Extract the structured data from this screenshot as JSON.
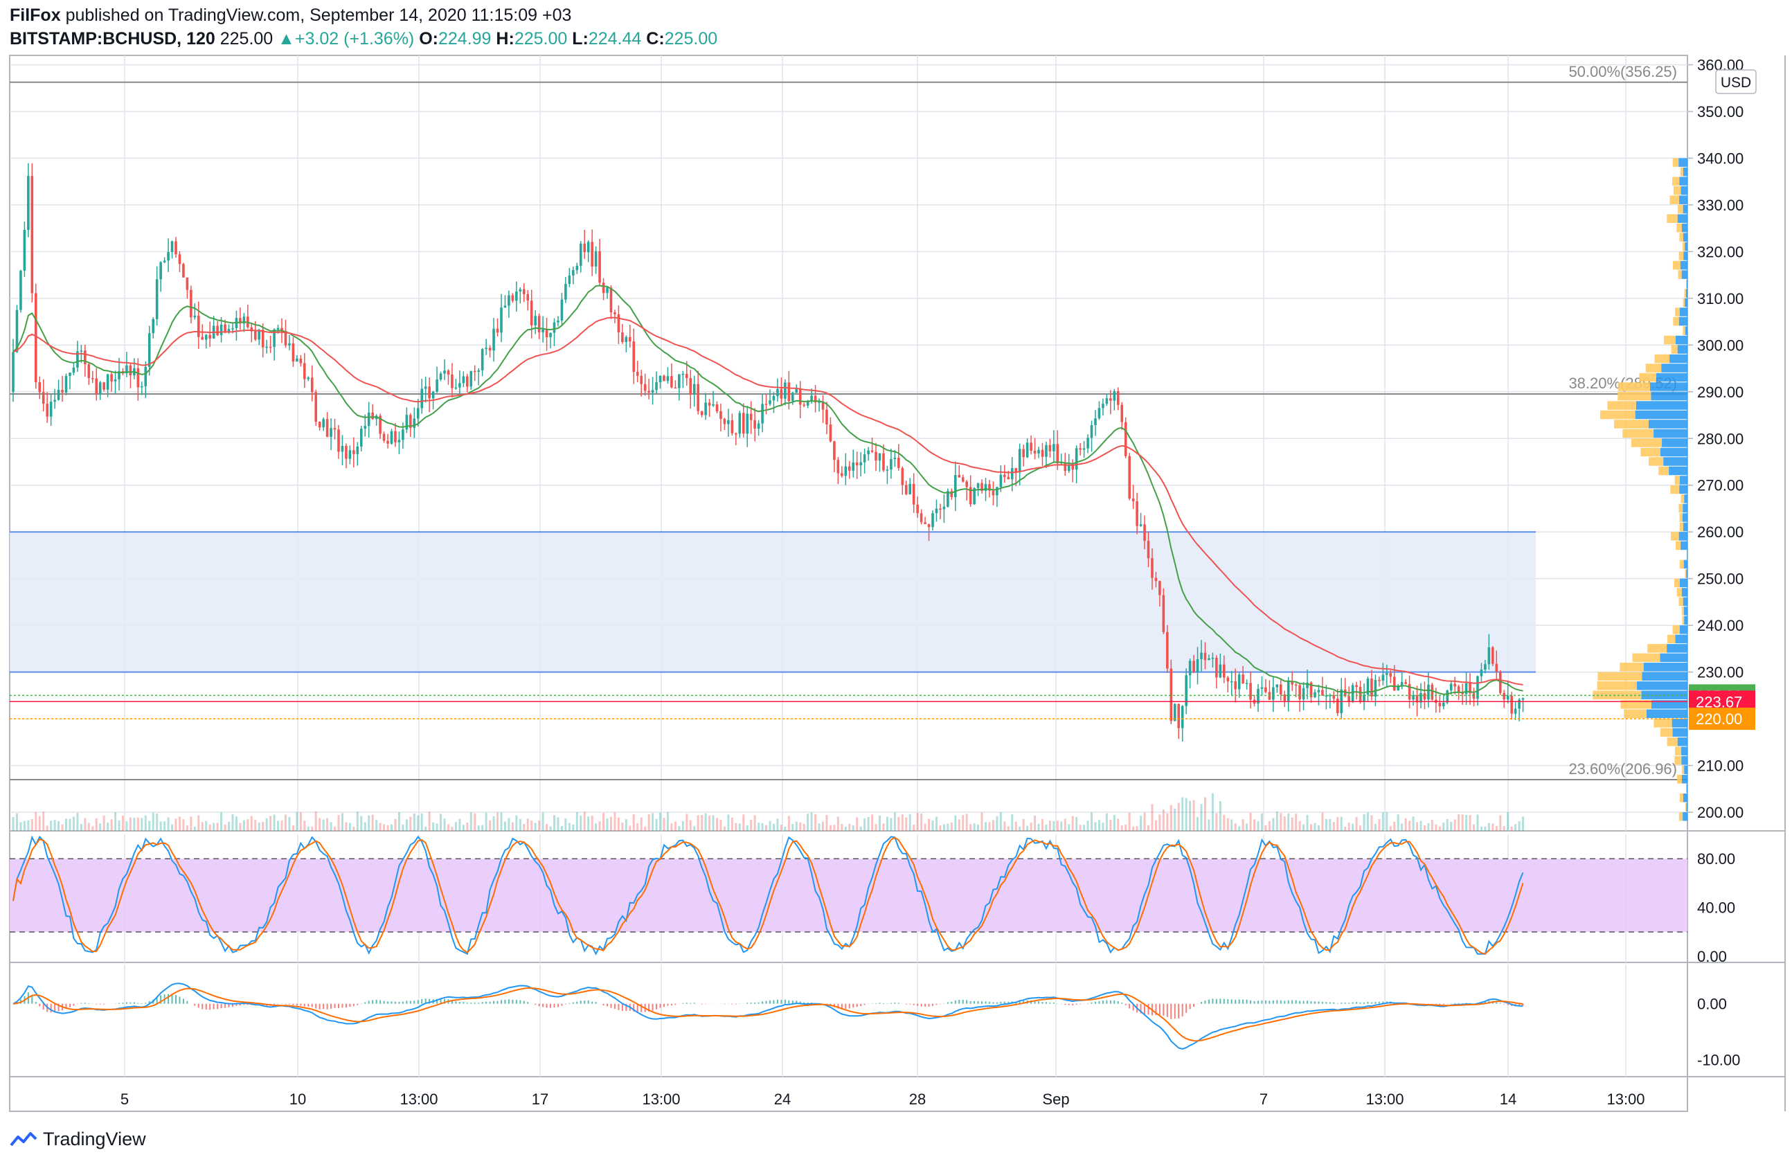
{
  "header": {
    "author": "FilFox",
    "published": "published on TradingView.com, September 14, 2020 11:15:09 +03",
    "symbol": "BITSTAMP:BCHUSD, 120",
    "last": "225.00",
    "change": "+3.02 (+1.36%)",
    "o_label": "O:",
    "o_value": "224.99",
    "h_label": "H:",
    "h_value": "225.00",
    "l_label": "L:",
    "l_value": "224.44",
    "c_label": "C:",
    "c_value": "225.00"
  },
  "footer": {
    "brand": "TradingView"
  },
  "colors": {
    "up": "#26a69a",
    "down": "#ef5350",
    "ma_fast": "#43a047",
    "ma_slow": "#ef5350",
    "zone": "#e3eaf8",
    "stoch_band": "#e8c9fb",
    "macd": "#2196f3",
    "signal": "#ff6d00",
    "price_up_tag": "#4caf50",
    "price_down_tag": "#ff1744",
    "price_orange_tag": "#ff9800"
  },
  "chart_data": {
    "type": "candlestick",
    "currency": "USD",
    "x_tick_labels": [
      "5",
      "10",
      "13:00",
      "17",
      "13:00",
      "24",
      "28",
      "Sep",
      "7",
      "13:00",
      "14",
      "13:00"
    ],
    "price_axis": {
      "ylim": [
        196,
        362
      ],
      "ticks": [
        "360.00",
        "350.00",
        "340.00",
        "330.00",
        "320.00",
        "310.00",
        "300.00",
        "290.00",
        "280.00",
        "270.00",
        "260.00",
        "250.00",
        "240.00",
        "230.00",
        "210.00",
        "200.00"
      ]
    },
    "fibonacci": [
      {
        "label": "50.00%(356.25)",
        "price": 356.25
      },
      {
        "label": "38.20%(289.52)",
        "price": 289.52
      },
      {
        "label": "23.60%(206.96)",
        "price": 206.96
      }
    ],
    "zone": {
      "top": 260,
      "bottom": 230
    },
    "price_tags": [
      {
        "label": "225.00",
        "price": 225.0,
        "kind": "last"
      },
      {
        "label": "223.67",
        "price": 223.67,
        "kind": "ma"
      },
      {
        "label": "220.00",
        "price": 220.0,
        "kind": "level"
      }
    ],
    "price_path": [
      [
        0,
        290
      ],
      [
        3,
        318
      ],
      [
        5,
        336
      ],
      [
        7,
        290
      ],
      [
        10,
        284
      ],
      [
        14,
        290
      ],
      [
        18,
        300
      ],
      [
        24,
        290
      ],
      [
        30,
        296
      ],
      [
        35,
        292
      ],
      [
        40,
        318
      ],
      [
        43,
        322
      ],
      [
        47,
        312
      ],
      [
        50,
        300
      ],
      [
        55,
        304
      ],
      [
        60,
        306
      ],
      [
        66,
        302
      ],
      [
        70,
        302
      ],
      [
        74,
        300
      ],
      [
        78,
        294
      ],
      [
        81,
        286
      ],
      [
        86,
        280
      ],
      [
        90,
        276
      ],
      [
        95,
        284
      ],
      [
        100,
        280
      ],
      [
        105,
        283
      ],
      [
        110,
        290
      ],
      [
        115,
        293
      ],
      [
        120,
        292
      ],
      [
        124,
        296
      ],
      [
        128,
        302
      ],
      [
        131,
        310
      ],
      [
        135,
        311
      ],
      [
        140,
        303
      ],
      [
        144,
        305
      ],
      [
        148,
        314
      ],
      [
        151,
        322
      ],
      [
        155,
        318
      ],
      [
        158,
        310
      ],
      [
        162,
        303
      ],
      [
        166,
        294
      ],
      [
        170,
        290
      ],
      [
        174,
        292
      ],
      [
        178,
        293
      ],
      [
        183,
        287
      ],
      [
        188,
        284
      ],
      [
        192,
        283
      ],
      [
        196,
        284
      ],
      [
        200,
        286
      ],
      [
        205,
        290
      ],
      [
        208,
        289
      ],
      [
        212,
        289
      ],
      [
        216,
        282
      ],
      [
        220,
        272
      ],
      [
        225,
        275
      ],
      [
        229,
        276
      ],
      [
        233,
        275
      ],
      [
        237,
        270
      ],
      [
        242,
        262
      ],
      [
        245,
        266
      ],
      [
        250,
        270
      ],
      [
        255,
        268
      ],
      [
        260,
        270
      ],
      [
        265,
        274
      ],
      [
        270,
        278
      ],
      [
        275,
        278
      ],
      [
        280,
        274
      ],
      [
        284,
        279
      ],
      [
        288,
        286
      ],
      [
        291,
        290
      ],
      [
        294,
        283
      ],
      [
        296,
        268
      ],
      [
        298,
        263
      ],
      [
        300,
        260
      ],
      [
        302,
        252
      ],
      [
        305,
        240
      ],
      [
        307,
        222
      ],
      [
        309,
        220
      ],
      [
        311,
        230
      ],
      [
        315,
        233
      ],
      [
        320,
        230
      ],
      [
        325,
        228
      ],
      [
        330,
        225
      ],
      [
        335,
        227
      ],
      [
        340,
        225
      ],
      [
        345,
        226
      ],
      [
        350,
        223
      ],
      [
        355,
        225
      ],
      [
        360,
        227
      ],
      [
        365,
        228
      ],
      [
        370,
        226
      ],
      [
        375,
        225
      ],
      [
        380,
        225
      ],
      [
        385,
        226
      ],
      [
        388,
        227
      ],
      [
        391,
        234
      ],
      [
        393,
        230
      ],
      [
        395,
        226
      ],
      [
        397,
        222
      ],
      [
        399,
        223
      ],
      [
        400,
        225
      ]
    ],
    "rsi_stoch": {
      "levels": [
        80,
        20
      ],
      "ticks": [
        "80.00",
        "40.00",
        "0.00"
      ],
      "ylim": [
        -5,
        100
      ]
    },
    "macd": {
      "ticks": [
        "0.00",
        "-10.00"
      ],
      "ylim": [
        -13,
        7
      ]
    }
  }
}
